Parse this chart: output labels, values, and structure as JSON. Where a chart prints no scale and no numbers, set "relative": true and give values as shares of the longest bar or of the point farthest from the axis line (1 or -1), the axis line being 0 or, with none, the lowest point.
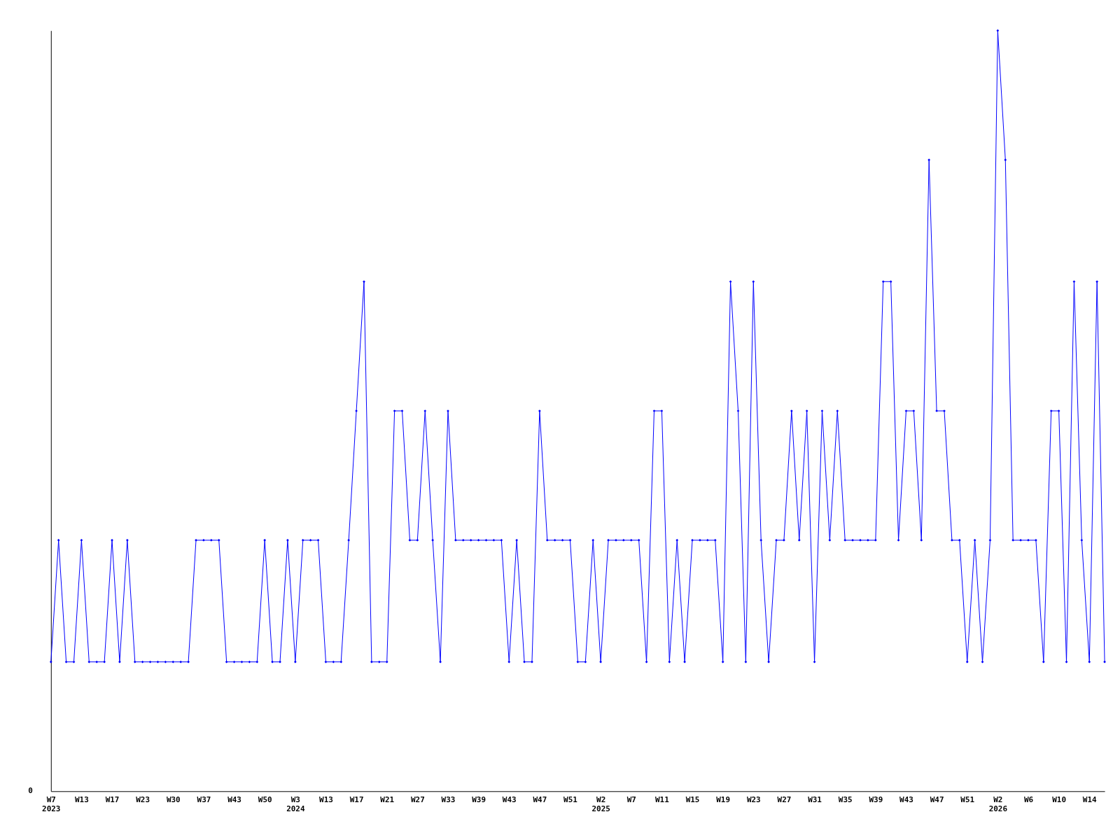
{
  "chart_data": {
    "type": "line",
    "relative": true,
    "color": "#0000ff",
    "marker": "diamond",
    "line_style": "solid",
    "grid": false,
    "annotations": [
      "0"
    ],
    "categories": [
      "W7\n2023",
      null,
      null,
      null,
      "W13",
      null,
      null,
      null,
      "W17",
      null,
      null,
      null,
      "W23",
      null,
      null,
      null,
      "W30",
      null,
      null,
      null,
      "W37",
      null,
      null,
      null,
      "W43",
      null,
      null,
      null,
      "W50",
      null,
      null,
      null,
      "W3\n2024",
      null,
      null,
      null,
      "W13",
      null,
      null,
      null,
      "W17",
      null,
      null,
      null,
      "W21",
      null,
      null,
      null,
      "W27",
      null,
      null,
      null,
      "W33",
      null,
      null,
      null,
      "W39",
      null,
      null,
      null,
      "W43",
      null,
      null,
      null,
      "W47",
      null,
      null,
      null,
      "W51",
      null,
      null,
      null,
      "W2\n2025",
      null,
      null,
      null,
      "W7",
      null,
      null,
      null,
      "W11",
      null,
      null,
      null,
      "W15",
      null,
      null,
      null,
      "W19",
      null,
      null,
      null,
      "W23",
      null,
      null,
      null,
      "W27",
      null,
      null,
      null,
      "W31",
      null,
      null,
      null,
      "W35",
      null,
      null,
      null,
      "W39",
      null,
      null,
      null,
      "W43",
      null,
      null,
      null,
      "W47",
      null,
      null,
      null,
      "W51",
      null,
      null,
      null,
      "W2\n2026",
      null,
      null,
      null,
      "W6",
      null,
      null,
      null,
      "W10",
      null,
      null,
      null,
      "W14",
      null,
      null
    ],
    "values": [
      0.17,
      0.33,
      0.17,
      0.17,
      0.33,
      0.17,
      0.17,
      0.17,
      0.33,
      0.17,
      0.33,
      0.17,
      0.17,
      0.17,
      0.17,
      0.17,
      0.17,
      0.17,
      0.17,
      0.33,
      0.33,
      0.33,
      0.33,
      0.17,
      0.17,
      0.17,
      0.17,
      0.17,
      0.33,
      0.17,
      0.17,
      0.33,
      0.17,
      0.33,
      0.33,
      0.33,
      0.17,
      0.17,
      0.17,
      0.33,
      0.5,
      0.67,
      0.17,
      0.17,
      0.17,
      0.5,
      0.5,
      0.33,
      0.33,
      0.5,
      0.33,
      0.17,
      0.5,
      0.33,
      0.33,
      0.33,
      0.33,
      0.33,
      0.33,
      0.33,
      0.17,
      0.33,
      0.17,
      0.17,
      0.5,
      0.33,
      0.33,
      0.33,
      0.33,
      0.17,
      0.17,
      0.33,
      0.17,
      0.33,
      0.33,
      0.33,
      0.33,
      0.33,
      0.17,
      0.5,
      0.5,
      0.17,
      0.33,
      0.17,
      0.33,
      0.33,
      0.33,
      0.33,
      0.17,
      0.67,
      0.5,
      0.17,
      0.67,
      0.33,
      0.17,
      0.33,
      0.33,
      0.5,
      0.33,
      0.5,
      0.17,
      0.5,
      0.33,
      0.5,
      0.33,
      0.33,
      0.33,
      0.33,
      0.33,
      0.67,
      0.67,
      0.33,
      0.5,
      0.5,
      0.33,
      0.83,
      0.5,
      0.5,
      0.33,
      0.33,
      0.17,
      0.33,
      0.17,
      0.33,
      1,
      0.83,
      0.33,
      0.33,
      0.33,
      0.33,
      0.17,
      0.5,
      0.5,
      0.17,
      0.67,
      0.33,
      0.17,
      0.67,
      0.17
    ]
  }
}
